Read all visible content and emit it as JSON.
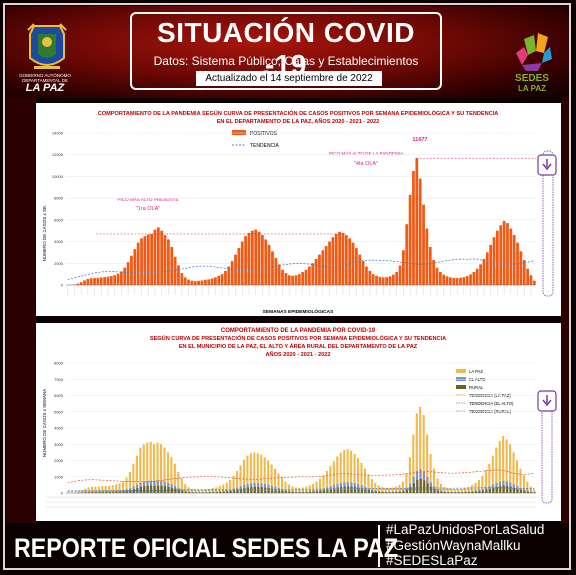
{
  "header": {
    "title": "SITUACIÓN COVID -19",
    "subtitle": "Datos: Sistema Público, Cajas y Establecimientos Privados",
    "updated_label": "Actualizado el",
    "updated_date": "14 septiembre de 2022",
    "logo_left_caption": "GOBIERNO AUTÓNOMO DEPARTAMENTAL DE",
    "logo_left_name": "LA PAZ",
    "logo_right_name": "SEDES",
    "logo_right_sub": "LA PAZ"
  },
  "footer": {
    "title": "REPORTE OFICIAL SEDES LA PAZ",
    "hashtags": [
      "#LaPazUnidosPorLaSalud",
      "#GestiónWaynaMallku",
      "#SEDESLaPaz"
    ]
  },
  "colors": {
    "positivos": "#f05a14",
    "la_paz": "#f2b84a",
    "el_alto": "#7b93c8",
    "rural": "#6b6420",
    "tendencia": "#4a86c8",
    "tendencia_lapaz": "#e05030",
    "red_title": "#c00000"
  },
  "chart_data": [
    {
      "type": "bar",
      "title": "COMPORTAMIENTO DE LA PANDEMIA SEGÚN CURVA DE PRESENTACIÓN DE CASOS POSITIVOS POR SEMANA EPIDEMIOLÓGICA Y SU TENDENCIA",
      "subtitle": "EN EL DEPARTAMENTO DE LA PAZ, AÑOS 2020 - 2021 - 2022",
      "xlabel": "SEMANAS EPIDEMIOLÓGICAS",
      "ylabel": "NÚMERO DE CASOS x SE.",
      "ylim": [
        0,
        14000
      ],
      "yticks": [
        0,
        2000,
        4000,
        6000,
        8000,
        10000,
        12000,
        14000
      ],
      "legend": [
        "POSITIVOS",
        "TENDENCIA"
      ],
      "legend_position": "top-center",
      "annotations": [
        {
          "text": "PICO MÁS ALTO PRESENTE",
          "sub": "\"1ra OLA\""
        },
        {
          "text": "PICO MÁS ALTO DE LA PANDEMIA",
          "sub": "\"4ta OLA\""
        },
        {
          "text": "11677"
        }
      ],
      "series": [
        {
          "name": "POSITIVOS",
          "values": [
            0,
            10,
            40,
            120,
            260,
            420,
            560,
            620,
            640,
            660,
            700,
            720,
            760,
            820,
            900,
            1050,
            1250,
            1600,
            2100,
            2700,
            3300,
            3900,
            4300,
            4500,
            4650,
            4700,
            5100,
            5300,
            5000,
            4600,
            4200,
            3500,
            2600,
            1800,
            1100,
            700,
            500,
            400,
            350,
            380,
            420,
            480,
            520,
            600,
            700,
            850,
            1000,
            1300,
            1700,
            2200,
            2800,
            3400,
            4000,
            4500,
            4800,
            5000,
            5100,
            4900,
            4600,
            4200,
            3700,
            3100,
            2500,
            1900,
            1400,
            1100,
            900,
            850,
            900,
            1000,
            1200,
            1400,
            1700,
            2000,
            2400,
            2800,
            3200,
            3600,
            4000,
            4400,
            4700,
            4900,
            4800,
            4600,
            4300,
            3900,
            3400,
            2800,
            2200,
            1700,
            1300,
            1000,
            850,
            750,
            700,
            720,
            800,
            950,
            1200,
            1800,
            3200,
            5600,
            8300,
            10500,
            11677,
            9800,
            7400,
            5200,
            3500,
            2300,
            1600,
            1200,
            950,
            800,
            700,
            650,
            640,
            660,
            720,
            820,
            980,
            1200,
            1500,
            1900,
            2400,
            3000,
            3700,
            4400,
            5000,
            5500,
            5900,
            5700,
            5200,
            4600,
            3900,
            3100,
            2300,
            1500,
            900,
            400
          ]
        }
      ]
    },
    {
      "type": "bar",
      "title": "COMPORTAMIENTO DE LA PANDEMIA POR COVID-19",
      "subtitle": "SEGÚN CURVA DE PRESENTACIÓN DE CASOS POSITIVOS POR SEMANA EPIDEMIOLÓGICA Y SU TENDENCIA",
      "subtitle2": "EN EL MUNICIPIO DE LA PAZ, EL ALTO Y ÁREA RURAL DEL DEPARTAMENTO DE LA PAZ",
      "subtitle3": "AÑOS 2020 - 2021 - 2022",
      "ylabel": "NÚMERO DE CASOS x SEMANA",
      "ylim": [
        0,
        8000
      ],
      "yticks": [
        0,
        1000,
        2000,
        3000,
        4000,
        5000,
        6000,
        7000,
        8000
      ],
      "legend": [
        "LA PAZ",
        "EL ALTO",
        "RURAL",
        "TENDENCIA (LA PAZ)",
        "TENDENCIA (EL ALTO)",
        "TENDENCIA (RURAL)"
      ],
      "legend_position": "top-right",
      "series": [
        {
          "name": "LA PAZ",
          "values": [
            0,
            10,
            30,
            80,
            160,
            260,
            340,
            380,
            390,
            400,
            420,
            430,
            450,
            480,
            520,
            600,
            720,
            950,
            1300,
            1800,
            2300,
            2800,
            3000,
            3100,
            3150,
            3000,
            3100,
            3000,
            2800,
            2500,
            2200,
            1800,
            1300,
            900,
            550,
            350,
            250,
            200,
            180,
            190,
            220,
            260,
            300,
            350,
            420,
            520,
            640,
            800,
            1050,
            1350,
            1700,
            2050,
            2300,
            2450,
            2500,
            2450,
            2350,
            2200,
            2000,
            1750,
            1500,
            1200,
            950,
            700,
            520,
            400,
            340,
            320,
            340,
            390,
            460,
            560,
            700,
            880,
            1100,
            1350,
            1650,
            1950,
            2250,
            2500,
            2650,
            2700,
            2600,
            2400,
            2150,
            1850,
            1500,
            1150,
            850,
            620,
            470,
            380,
            330,
            320,
            340,
            400,
            500,
            700,
            1200,
            2200,
            3600,
            4900,
            5300,
            4800,
            3600,
            2400,
            1500,
            900,
            560,
            380,
            300,
            260,
            240,
            240,
            260,
            310,
            380,
            480,
            620,
            800,
            1050,
            1400,
            1800,
            2300,
            2800,
            3200,
            3500,
            3300,
            3000,
            2500,
            2000,
            1500,
            1100,
            700,
            400,
            200
          ]
        },
        {
          "name": "EL ALTO",
          "values": [
            0,
            2,
            8,
            20,
            40,
            60,
            80,
            90,
            90,
            95,
            100,
            105,
            110,
            120,
            130,
            150,
            180,
            230,
            300,
            400,
            500,
            620,
            700,
            740,
            760,
            750,
            760,
            740,
            700,
            620,
            540,
            440,
            320,
            220,
            140,
            90,
            65,
            55,
            50,
            52,
            58,
            68,
            80,
            95,
            115,
            140,
            170,
            210,
            270,
            340,
            420,
            500,
            560,
            600,
            620,
            610,
            590,
            550,
            500,
            440,
            380,
            310,
            240,
            180,
            130,
            100,
            85,
            80,
            85,
            100,
            120,
            145,
            180,
            225,
            280,
            340,
            410,
            480,
            550,
            610,
            650,
            670,
            650,
            610,
            550,
            470,
            380,
            290,
            210,
            150,
            115,
            95,
            85,
            82,
            88,
            102,
            130,
            180,
            320,
            600,
            1000,
            1350,
            1450,
            1300,
            980,
            650,
            400,
            240,
            150,
            100,
            80,
            70,
            65,
            65,
            70,
            82,
            100,
            125,
            160,
            205,
            260,
            330,
            420,
            520,
            620,
            700,
            760,
            720,
            650,
            540,
            430,
            320,
            230,
            150,
            90,
            50
          ]
        },
        {
          "name": "RURAL",
          "values": [
            0,
            1,
            5,
            12,
            24,
            36,
            48,
            54,
            54,
            57,
            60,
            63,
            66,
            72,
            78,
            90,
            108,
            138,
            180,
            240,
            300,
            372,
            420,
            444,
            456,
            450,
            456,
            444,
            420,
            372,
            324,
            264,
            192,
            132,
            84,
            54,
            39,
            33,
            30,
            31,
            35,
            41,
            48,
            57,
            69,
            84,
            102,
            126,
            162,
            204,
            252,
            300,
            336,
            360,
            372,
            366,
            354,
            330,
            300,
            264,
            228,
            186,
            144,
            108,
            78,
            60,
            51,
            48,
            51,
            60,
            72,
            87,
            108,
            135,
            168,
            204,
            246,
            288,
            330,
            366,
            390,
            402,
            390,
            366,
            330,
            282,
            228,
            174,
            126,
            90,
            69,
            57,
            51,
            49,
            53,
            61,
            78,
            108,
            192,
            360,
            600,
            810,
            870,
            780,
            588,
            390,
            240,
            144,
            90,
            60,
            48,
            42,
            39,
            39,
            42,
            49,
            60,
            75,
            96,
            123,
            156,
            198,
            252,
            312,
            372,
            420,
            456,
            432,
            390,
            324,
            258,
            192,
            138,
            90,
            54,
            30
          ]
        }
      ]
    }
  ]
}
